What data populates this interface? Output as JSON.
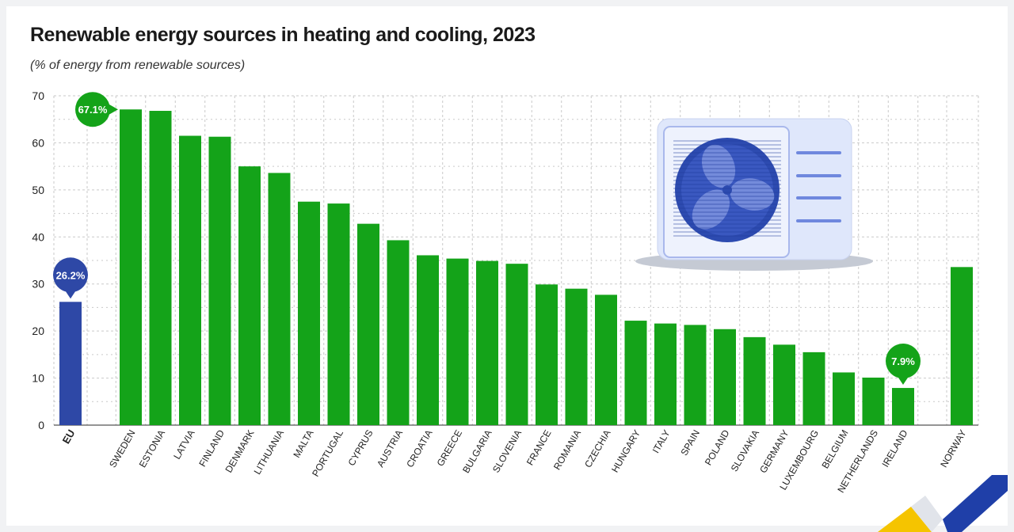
{
  "header": {
    "title": "Renewable energy sources in heating and cooling, 2023",
    "subtitle": "(% of energy from renewable sources)"
  },
  "colors": {
    "eu_bar": "#2e48a6",
    "country_bar": "#14a319",
    "callout_eu": "#2e48a6",
    "callout_green": "#14a319",
    "grid": "#c9c9c9",
    "logo_blue": "#1f3fa8",
    "logo_yellow": "#f5c400"
  },
  "illustration": {
    "icon": "heat-pump-outdoor-unit-icon"
  },
  "logo": {
    "icon": "eurostat-logo-icon"
  },
  "chart_data": {
    "type": "bar",
    "title": "Renewable energy sources in heating and cooling, 2023",
    "subtitle": "(% of energy from renewable sources)",
    "xlabel": "",
    "ylabel": "",
    "ylim": [
      0,
      70
    ],
    "yticks": [
      0,
      10,
      20,
      30,
      40,
      50,
      60,
      70
    ],
    "grid": true,
    "categories": [
      "EU",
      "SWEDEN",
      "ESTONIA",
      "LATVIA",
      "FINLAND",
      "DENMARK",
      "LITHUANIA",
      "MALTA",
      "PORTUGAL",
      "CYPRUS",
      "AUSTRIA",
      "CROATIA",
      "GREECE",
      "BULGARIA",
      "SLOVENIA",
      "FRANCE",
      "ROMANIA",
      "CZECHIA",
      "HUNGARY",
      "ITALY",
      "SPAIN",
      "POLAND",
      "SLOVAKIA",
      "GERMANY",
      "LUXEMBOURG",
      "BELGIUM",
      "NETHERLANDS",
      "IRELAND",
      "NORWAY"
    ],
    "values": [
      26.2,
      67.1,
      66.8,
      61.5,
      61.3,
      55.0,
      53.6,
      47.5,
      47.1,
      42.8,
      39.3,
      36.1,
      35.4,
      34.9,
      34.3,
      29.9,
      29.0,
      27.7,
      22.2,
      21.6,
      21.3,
      20.4,
      18.7,
      17.1,
      15.5,
      11.2,
      10.1,
      7.9,
      33.6
    ],
    "callouts": [
      {
        "category": "EU",
        "label": "26.2%"
      },
      {
        "category": "SWEDEN",
        "label": "67.1%"
      },
      {
        "category": "IRELAND",
        "label": "7.9%"
      }
    ]
  }
}
